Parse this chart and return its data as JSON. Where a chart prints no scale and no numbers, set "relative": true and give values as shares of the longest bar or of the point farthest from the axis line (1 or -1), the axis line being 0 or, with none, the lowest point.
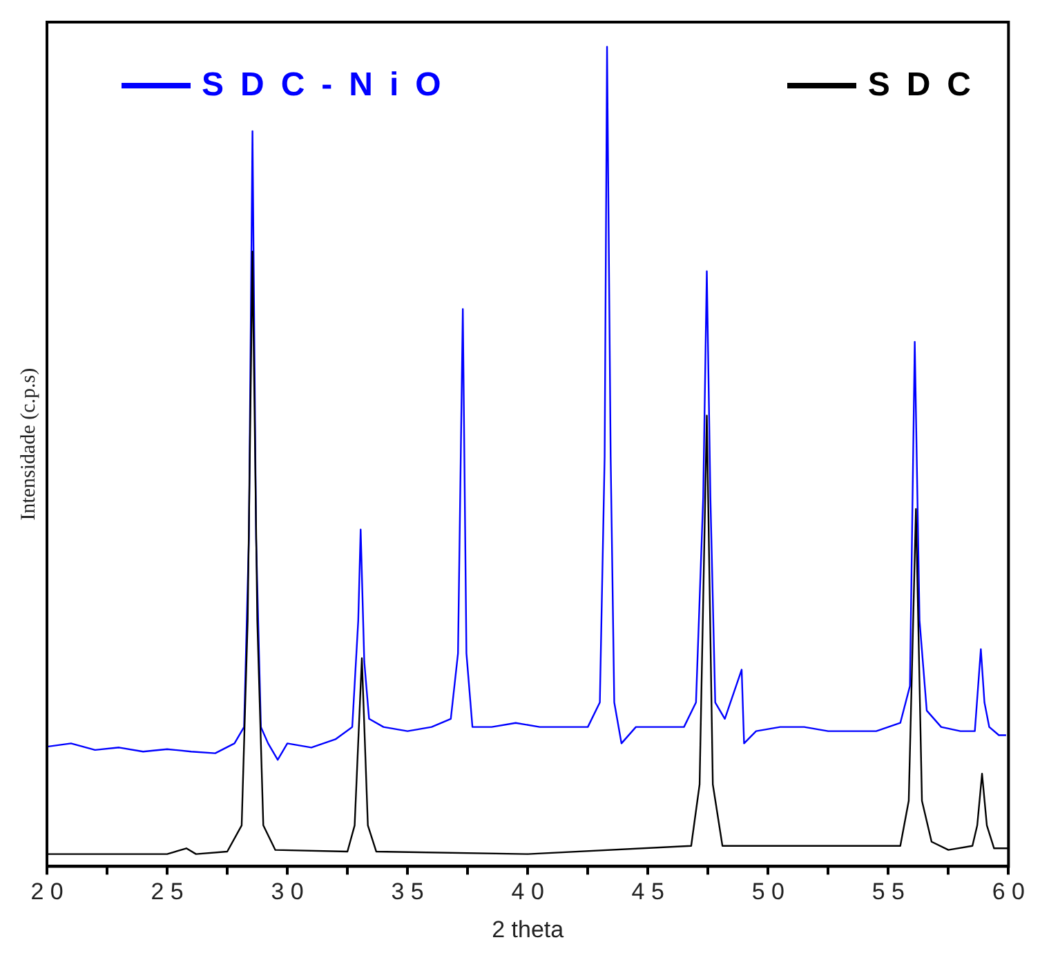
{
  "chart_data": {
    "type": "line",
    "xlabel": "2 theta",
    "ylabel": "Intensidade (c.p.s)",
    "relative": true,
    "legend": "top",
    "marker": "none",
    "line_style": "solid",
    "grid": false,
    "xlim": [
      20,
      60
    ],
    "xticks": [
      20,
      {
        "value": 22.5,
        "label": null
      },
      25,
      {
        "value": 27.5,
        "label": null
      },
      30,
      {
        "value": 32.5,
        "label": null
      },
      35,
      {
        "value": 37.5,
        "label": null
      },
      40,
      {
        "value": 42.5,
        "label": null
      },
      45,
      {
        "value": 47.5,
        "label": null
      },
      50,
      {
        "value": 52.5,
        "label": null
      },
      55,
      {
        "value": 57.5,
        "label": null
      },
      60
    ],
    "series": [
      {
        "name": "SDC",
        "color": "#000000",
        "x": [
          20,
          25,
          25.8,
          26.2,
          27.5,
          28.1,
          28.35,
          28.55,
          28.75,
          29.0,
          29.5,
          32.5,
          32.8,
          33.1,
          33.35,
          33.7,
          40,
          46.8,
          47.15,
          47.45,
          47.7,
          48.1,
          55.5,
          55.85,
          56.15,
          56.4,
          56.8,
          57.5,
          58.5,
          58.7,
          58.9,
          59.1,
          59.4,
          60
        ],
        "values": [
          0.015,
          0.015,
          0.022,
          0.015,
          0.018,
          0.05,
          0.3,
          0.75,
          0.3,
          0.05,
          0.02,
          0.018,
          0.05,
          0.254,
          0.05,
          0.018,
          0.015,
          0.025,
          0.1,
          0.55,
          0.1,
          0.025,
          0.025,
          0.08,
          0.436,
          0.08,
          0.03,
          0.02,
          0.025,
          0.05,
          0.113,
          0.05,
          0.022,
          0.022
        ]
      },
      {
        "name": "SDC-NiO",
        "color": "#0000ff",
        "x": [
          20,
          21,
          22,
          23,
          24,
          25,
          26,
          27,
          27.8,
          28.2,
          28.4,
          28.55,
          28.7,
          28.9,
          29.2,
          29.6,
          30,
          31,
          32,
          32.7,
          32.95,
          33.05,
          33.2,
          33.4,
          34,
          35,
          36,
          36.8,
          37.1,
          37.3,
          37.45,
          37.7,
          38.5,
          39.5,
          40.5,
          41.5,
          42.5,
          43,
          43.2,
          43.3,
          43.45,
          43.6,
          43.9,
          44.5,
          45.5,
          46.5,
          47.0,
          47.3,
          47.45,
          47.6,
          47.8,
          48.2,
          48.9,
          49.0,
          49.5,
          50.5,
          51.5,
          52.5,
          53.5,
          54.5,
          55.5,
          55.9,
          56.1,
          56.3,
          56.6,
          57.2,
          58,
          58.6,
          58.85,
          59.0,
          59.2,
          59.6,
          59.9
        ],
        "values": [
          0.146,
          0.15,
          0.142,
          0.145,
          0.14,
          0.143,
          0.14,
          0.138,
          0.15,
          0.17,
          0.4,
          0.897,
          0.4,
          0.17,
          0.15,
          0.13,
          0.15,
          0.145,
          0.155,
          0.17,
          0.3,
          0.411,
          0.25,
          0.18,
          0.17,
          0.165,
          0.17,
          0.18,
          0.26,
          0.68,
          0.26,
          0.17,
          0.17,
          0.175,
          0.17,
          0.17,
          0.17,
          0.2,
          0.5,
          1.0,
          0.5,
          0.2,
          0.15,
          0.17,
          0.17,
          0.17,
          0.2,
          0.45,
          0.726,
          0.45,
          0.2,
          0.18,
          0.24,
          0.15,
          0.165,
          0.17,
          0.17,
          0.165,
          0.165,
          0.165,
          0.175,
          0.22,
          0.64,
          0.3,
          0.19,
          0.17,
          0.165,
          0.165,
          0.265,
          0.2,
          0.17,
          0.16,
          0.16
        ]
      }
    ]
  }
}
